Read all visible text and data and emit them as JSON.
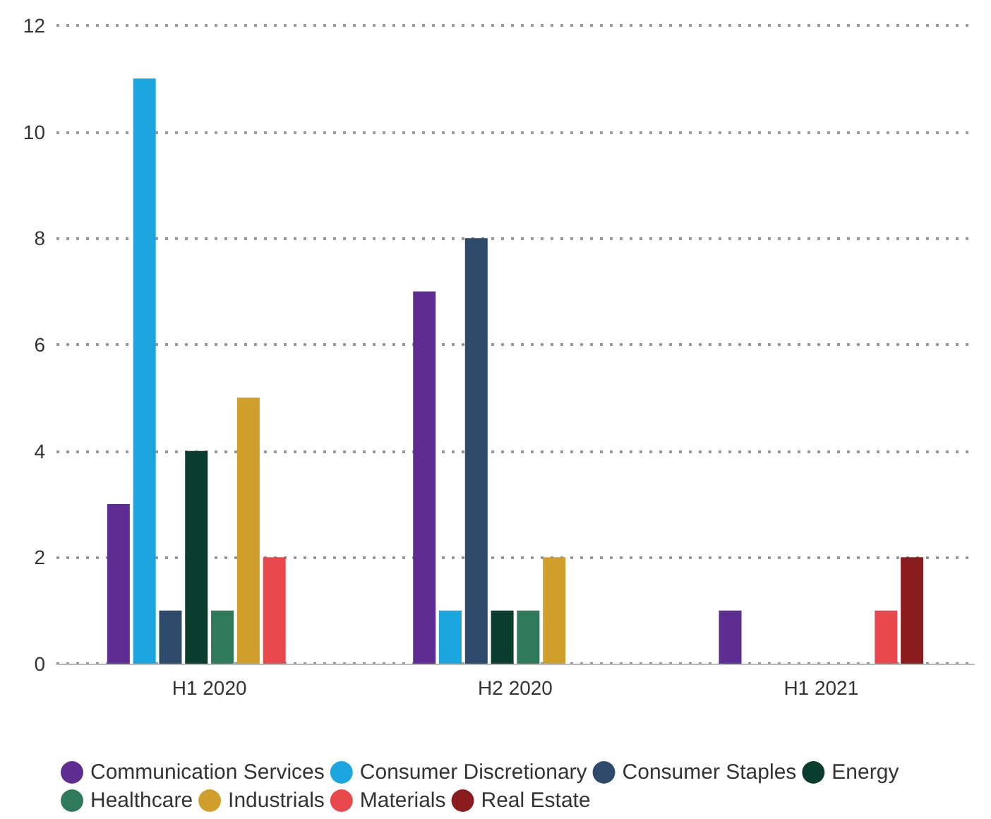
{
  "chart_data": {
    "type": "bar",
    "categories": [
      "H1 2020",
      "H2 2020",
      "H1 2021"
    ],
    "series": [
      {
        "name": "Communication Services",
        "color": "#5e2d91",
        "values": [
          3,
          7,
          1
        ]
      },
      {
        "name": "Consumer Discretionary",
        "color": "#1ba6e0",
        "values": [
          11,
          1,
          null
        ]
      },
      {
        "name": "Consumer Staples",
        "color": "#2d4a6b",
        "values": [
          1,
          8,
          null
        ]
      },
      {
        "name": "Energy",
        "color": "#0b3d2e",
        "values": [
          4,
          1,
          null
        ]
      },
      {
        "name": "Healthcare",
        "color": "#2f7a5b",
        "values": [
          1,
          1,
          null
        ]
      },
      {
        "name": "Industrials",
        "color": "#d09e2a",
        "values": [
          5,
          2,
          null
        ]
      },
      {
        "name": "Materials",
        "color": "#e8484c",
        "values": [
          2,
          null,
          1
        ]
      },
      {
        "name": "Real Estate",
        "color": "#8b1c1e",
        "values": [
          null,
          null,
          2
        ]
      }
    ],
    "ylim": [
      0,
      12
    ],
    "yticks": [
      0,
      2,
      4,
      6,
      8,
      10,
      12
    ],
    "grid": "y",
    "legend": "bottom"
  }
}
